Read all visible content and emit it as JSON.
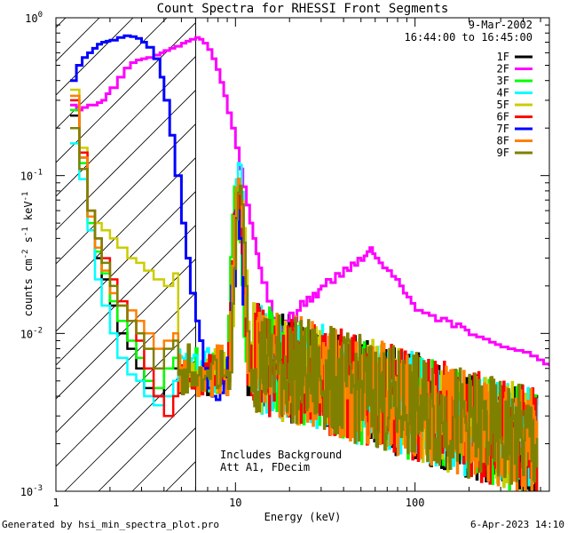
{
  "chart_data": {
    "type": "line",
    "title": "Count Spectra for RHESSI Front Segments",
    "xlabel": "Energy (keV)",
    "ylabel_parts": [
      "counts cm",
      "-2",
      " s",
      "-1",
      " keV",
      "-1"
    ],
    "xscale": "log",
    "yscale": "log",
    "xlim": [
      1,
      560
    ],
    "ylim": [
      0.001,
      1.0
    ],
    "x_ticks": [
      {
        "value": 1,
        "label": "1"
      },
      {
        "value": 10,
        "label": "10"
      },
      {
        "value": 100,
        "label": "100"
      }
    ],
    "y_ticks": [
      {
        "value": 1.0,
        "base": "10",
        "exp": "0"
      },
      {
        "value": 0.1,
        "base": "10",
        "exp": "-1"
      },
      {
        "value": 0.01,
        "base": "10",
        "exp": "-2"
      },
      {
        "value": 0.001,
        "base": "10",
        "exp": "-3"
      }
    ],
    "date": "9-Mar-2002",
    "time_range": "16:44:00 to 16:45:00",
    "annotation_line1": "Includes Background",
    "annotation_line2": "Att A1, FDecim",
    "attenuator_edge_kev": 6.0,
    "hatched_region_kev": [
      1,
      6.0
    ],
    "footer_left": "Generated by hsi_min_spectra_plot.pro",
    "footer_right": "6-Apr-2023 14:10",
    "series": [
      {
        "name": "1F",
        "color": "#000000",
        "seed": 11,
        "peak_kev": 10.3,
        "peak_value": 0.08,
        "low": [
          0.24,
          0.13,
          0.055,
          0.03,
          0.022,
          0.015,
          0.01,
          0.008,
          0.006,
          0.0045,
          0.004,
          0.006,
          0.006
        ]
      },
      {
        "name": "2F",
        "color": "#ff00ff",
        "seed": 0,
        "x": [
          1.2,
          1.3,
          1.4,
          1.5,
          1.6,
          1.7,
          1.8,
          1.9,
          2.0,
          2.2,
          2.4,
          2.6,
          2.8,
          3.0,
          3.2,
          3.5,
          3.8,
          4.0,
          4.3,
          4.6,
          5.0,
          5.3,
          5.6,
          6.0,
          6.3,
          6.6,
          7.0,
          7.4,
          7.8,
          8.2,
          8.6,
          9.0,
          9.5,
          10.0,
          10.5,
          11.0,
          11.5,
          12.0,
          12.5,
          13.0,
          13.5,
          14.0,
          15.0,
          16.0,
          17.0,
          18.0,
          19.0,
          20.0,
          21.0,
          22.0,
          23.0,
          24.0,
          25.0,
          26.0,
          27.0,
          28.0,
          29.0,
          30.0,
          32.0,
          34.0,
          36.0,
          38.0,
          40.0,
          42.0,
          44.0,
          46.0,
          48.0,
          50.0,
          52.0,
          54.0,
          56.0,
          58.0,
          60.0,
          63.0,
          66.0,
          70.0,
          74.0,
          78.0,
          82.0,
          86.0,
          90.0,
          95.0,
          100.0,
          110.0,
          120.0,
          130.0,
          140.0,
          150.0,
          160.0,
          170.0,
          180.0,
          190.0,
          200.0,
          220.0,
          240.0,
          260.0,
          280.0,
          300.0,
          330.0,
          360.0,
          400.0,
          440.0,
          480.0,
          520.0,
          560.0
        ],
        "values": [
          0.28,
          0.26,
          0.27,
          0.28,
          0.28,
          0.29,
          0.3,
          0.33,
          0.36,
          0.42,
          0.48,
          0.52,
          0.54,
          0.55,
          0.56,
          0.58,
          0.6,
          0.62,
          0.64,
          0.66,
          0.69,
          0.71,
          0.73,
          0.75,
          0.73,
          0.69,
          0.63,
          0.55,
          0.47,
          0.39,
          0.32,
          0.25,
          0.2,
          0.15,
          0.11,
          0.085,
          0.065,
          0.05,
          0.04,
          0.032,
          0.026,
          0.021,
          0.016,
          0.0125,
          0.011,
          0.0105,
          0.012,
          0.0135,
          0.012,
          0.014,
          0.016,
          0.015,
          0.017,
          0.016,
          0.018,
          0.017,
          0.019,
          0.02,
          0.022,
          0.021,
          0.024,
          0.023,
          0.026,
          0.025,
          0.028,
          0.027,
          0.03,
          0.029,
          0.031,
          0.033,
          0.035,
          0.032,
          0.03,
          0.028,
          0.026,
          0.025,
          0.023,
          0.022,
          0.02,
          0.018,
          0.017,
          0.0155,
          0.014,
          0.0135,
          0.013,
          0.012,
          0.0125,
          0.012,
          0.011,
          0.0115,
          0.011,
          0.0105,
          0.0098,
          0.0095,
          0.0092,
          0.0088,
          0.0085,
          0.0082,
          0.008,
          0.0078,
          0.0076,
          0.0072,
          0.0068,
          0.0064,
          0.0062
        ]
      },
      {
        "name": "3F",
        "color": "#00ff00",
        "seed": 23,
        "peak_kev": 10.0,
        "peak_value": 0.085,
        "low": [
          0.26,
          0.12,
          0.05,
          0.033,
          0.024,
          0.016,
          0.012,
          0.009,
          0.007,
          0.005,
          0.0045,
          0.006,
          0.007
        ]
      },
      {
        "name": "4F",
        "color": "#00ffff",
        "seed": 37,
        "peak_kev": 10.4,
        "peak_value": 0.12,
        "low": [
          0.16,
          0.095,
          0.045,
          0.022,
          0.015,
          0.01,
          0.007,
          0.0055,
          0.005,
          0.004,
          0.0035,
          0.004,
          0.005
        ]
      },
      {
        "name": "5F",
        "color": "#cccc00",
        "seed": 41,
        "peak_kev": 10.6,
        "peak_value": 0.075,
        "low": [
          0.35,
          0.15,
          0.06,
          0.05,
          0.045,
          0.04,
          0.035,
          0.03,
          0.028,
          0.025,
          0.022,
          0.02,
          0.024
        ]
      },
      {
        "name": "6F",
        "color": "#ff0000",
        "seed": 53,
        "peak_kev": 10.2,
        "peak_value": 0.075,
        "low": [
          0.3,
          0.14,
          0.06,
          0.04,
          0.03,
          0.022,
          0.016,
          0.012,
          0.009,
          0.006,
          0.004,
          0.003,
          0.004
        ]
      },
      {
        "name": "7F",
        "color": "#0000ff",
        "seed": 0,
        "x": [
          1.2,
          1.3,
          1.4,
          1.5,
          1.6,
          1.7,
          1.8,
          1.9,
          2.0,
          2.2,
          2.4,
          2.6,
          2.8,
          3.0,
          3.2,
          3.5,
          3.8,
          4.0,
          4.3,
          4.6,
          5.0,
          5.3,
          5.6,
          6.0,
          6.3,
          6.6,
          7.0,
          7.4,
          7.8,
          8.2,
          8.6,
          9.0,
          9.5,
          10.0,
          10.5,
          11.0
        ],
        "values": [
          0.4,
          0.5,
          0.56,
          0.6,
          0.64,
          0.68,
          0.7,
          0.71,
          0.72,
          0.75,
          0.77,
          0.76,
          0.74,
          0.7,
          0.65,
          0.55,
          0.42,
          0.3,
          0.18,
          0.1,
          0.05,
          0.03,
          0.018,
          0.012,
          0.009,
          0.006,
          0.0045,
          0.004,
          0.0038,
          0.0042,
          0.005,
          0.007,
          0.02,
          0.06,
          0.04,
          0.015
        ]
      },
      {
        "name": "8F",
        "color": "#ff8000",
        "seed": 67,
        "peak_kev": 10.3,
        "peak_value": 0.09,
        "low": [
          0.32,
          0.13,
          0.055,
          0.035,
          0.025,
          0.018,
          0.015,
          0.014,
          0.012,
          0.01,
          0.008,
          0.009,
          0.01
        ]
      },
      {
        "name": "9F",
        "color": "#808000",
        "seed": 79,
        "peak_kev": 10.5,
        "peak_value": 0.08,
        "low": [
          0.2,
          0.11,
          0.06,
          0.04,
          0.028,
          0.02,
          0.015,
          0.012,
          0.01,
          0.008,
          0.006,
          0.008,
          0.009
        ]
      }
    ]
  }
}
